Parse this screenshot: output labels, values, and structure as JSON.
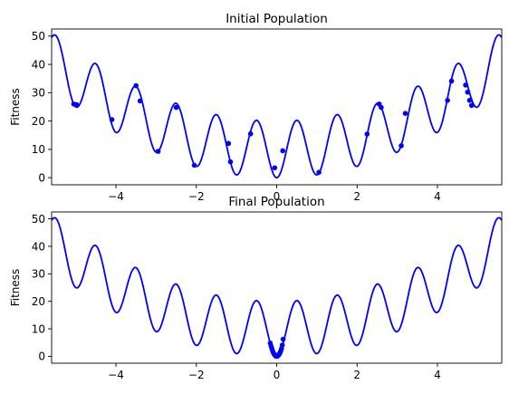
{
  "chart_data": [
    {
      "type": "line",
      "title": "Initial Population",
      "xlabel": "",
      "ylabel": "Fitness",
      "xlim": [
        -5.6,
        5.6
      ],
      "ylim": [
        -2.5,
        52.5
      ],
      "xticks": [
        -4,
        -2,
        0,
        2,
        4
      ],
      "xtick_labels": [
        "−4",
        "−2",
        "0",
        "2",
        "4"
      ],
      "yticks": [
        0,
        10,
        20,
        30,
        40,
        50
      ],
      "ytick_labels": [
        "0",
        "10",
        "20",
        "30",
        "40",
        "50"
      ],
      "grid": false,
      "curve_color": "#0000ff",
      "point_color": "#0000ff",
      "curve_function": "x^2 + 10 - 10*cos(2*pi*x)",
      "points": {
        "x": [
          -5.05,
          -4.98,
          -4.1,
          -3.5,
          -3.4,
          -2.95,
          -2.5,
          -2.05,
          -1.2,
          -1.15,
          -0.65,
          -0.05,
          0.15,
          1.05,
          2.25,
          2.55,
          2.6,
          3.1,
          3.2,
          4.25,
          4.35,
          4.7,
          4.75,
          4.8,
          4.85
        ],
        "y": [
          26.0,
          25.8,
          20.5,
          32.5,
          27.1,
          9.3,
          24.8,
          4.4,
          12.1,
          5.6,
          15.5,
          3.5,
          9.5,
          1.9,
          15.4,
          26.0,
          24.8,
          11.3,
          22.7,
          27.3,
          34.1,
          32.7,
          30.2,
          27.3,
          25.5
        ]
      }
    },
    {
      "type": "line",
      "title": "Final Population",
      "xlabel": "",
      "ylabel": "Fitness",
      "xlim": [
        -5.6,
        5.6
      ],
      "ylim": [
        -2.5,
        52.5
      ],
      "xticks": [
        -4,
        -2,
        0,
        2,
        4
      ],
      "xtick_labels": [
        "−4",
        "−2",
        "0",
        "2",
        "4"
      ],
      "yticks": [
        0,
        10,
        20,
        30,
        40,
        50
      ],
      "ytick_labels": [
        "0",
        "10",
        "20",
        "30",
        "40",
        "50"
      ],
      "grid": false,
      "curve_color": "#0000ff",
      "point_color": "#0000ff",
      "curve_function": "x^2 + 10 - 10*cos(2*pi*x)",
      "points": {
        "x": [
          -0.16,
          -0.14,
          -0.12,
          -0.1,
          -0.08,
          -0.06,
          -0.05,
          -0.03,
          -0.02,
          0.0,
          0.02,
          0.03,
          0.05,
          0.06,
          0.08,
          0.1,
          0.12,
          0.14,
          0.16
        ],
        "y": [
          4.8,
          3.7,
          2.8,
          1.9,
          1.2,
          0.7,
          0.5,
          0.2,
          0.1,
          0.0,
          0.1,
          0.2,
          0.5,
          0.7,
          1.2,
          1.9,
          2.8,
          4.1,
          6.2
        ]
      }
    }
  ]
}
